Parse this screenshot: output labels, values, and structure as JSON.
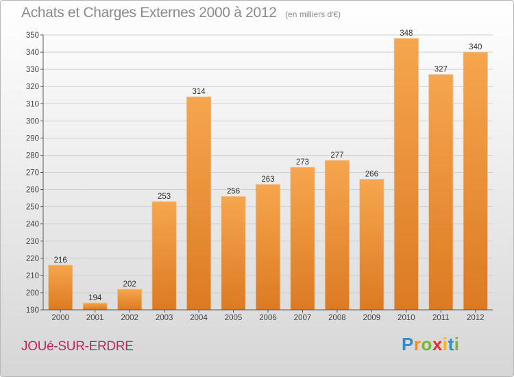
{
  "header": {
    "title": "Achats et Charges Externes 2000 à 2012",
    "unit": "(en milliers d'€)"
  },
  "footer": {
    "place": "JOUé-SUR-ERDRE",
    "logo_letters": [
      "P",
      "r",
      "o",
      "x",
      "i",
      "t",
      "i"
    ],
    "logo_colors": [
      "#2e8fd0",
      "#f28c1e",
      "#7ab62e",
      "#e2322f",
      "#f6b614",
      "#2e8fd0",
      "#7ab62e"
    ]
  },
  "colors": {
    "bar_top": "#f6a64e",
    "bar_bottom": "#dc7a22",
    "grid": "#cfcfcf"
  },
  "chart_data": {
    "type": "bar",
    "categories": [
      "2000",
      "2001",
      "2002",
      "2003",
      "2004",
      "2005",
      "2006",
      "2007",
      "2008",
      "2009",
      "2010",
      "2011",
      "2012"
    ],
    "values": [
      216,
      194,
      202,
      253,
      314,
      256,
      263,
      273,
      277,
      266,
      348,
      327,
      340
    ],
    "ylim": [
      190,
      350
    ],
    "ytick_step": 10,
    "grid": true,
    "title": "Achats et Charges Externes 2000 à 2012",
    "xlabel": "",
    "ylabel": ""
  }
}
